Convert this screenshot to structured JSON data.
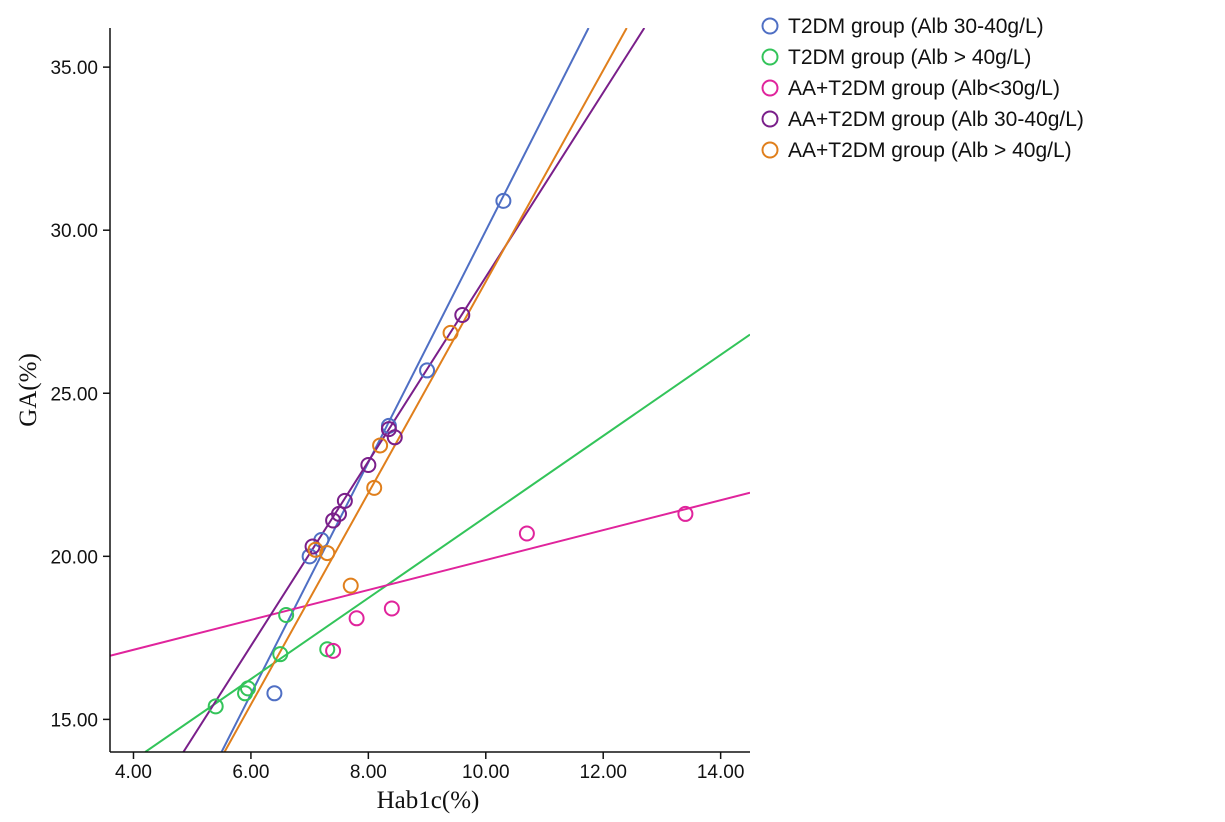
{
  "chart_data": {
    "type": "scatter",
    "title": "",
    "xlabel": "Hab1c(%)",
    "ylabel": "GA(%)",
    "xlim": [
      3.6,
      14.5
    ],
    "ylim": [
      14.0,
      36.2
    ],
    "xticks": [
      4,
      6,
      8,
      10,
      12,
      14
    ],
    "yticks": [
      15,
      20,
      25,
      30,
      35
    ],
    "xtick_labels": [
      "4.00",
      "6.00",
      "8.00",
      "10.00",
      "12.00",
      "14.00"
    ],
    "ytick_labels": [
      "15.00",
      "20.00",
      "25.00",
      "30.00",
      "35.00"
    ],
    "grid": false,
    "legend_position": "top-right outside",
    "series": [
      {
        "name": "T2DM group (Alb 30-40g/L)",
        "color": "#4f6fc4",
        "points": [
          [
            6.4,
            15.8
          ],
          [
            7.0,
            20.0
          ],
          [
            7.2,
            20.5
          ],
          [
            8.35,
            24.0
          ],
          [
            9.0,
            25.7
          ],
          [
            10.3,
            30.9
          ]
        ],
        "fit": [
          [
            5.5,
            14.0
          ],
          [
            11.75,
            36.2
          ]
        ]
      },
      {
        "name": "T2DM group (Alb > 40g/L)",
        "color": "#33c45a",
        "points": [
          [
            5.4,
            15.4
          ],
          [
            5.9,
            15.8
          ],
          [
            5.95,
            15.95
          ],
          [
            6.5,
            17.0
          ],
          [
            6.6,
            18.2
          ],
          [
            7.3,
            17.15
          ]
        ],
        "fit": [
          [
            4.2,
            14.0
          ],
          [
            14.5,
            26.8
          ]
        ]
      },
      {
        "name": "AA+T2DM group (Alb<30g/L)",
        "color": "#e0249c",
        "points": [
          [
            7.4,
            17.1
          ],
          [
            7.8,
            18.1
          ],
          [
            8.4,
            18.4
          ],
          [
            10.7,
            20.7
          ],
          [
            13.4,
            21.3
          ]
        ],
        "fit": [
          [
            3.6,
            16.95
          ],
          [
            14.5,
            21.95
          ]
        ]
      },
      {
        "name": "AA+T2DM group (Alb 30-40g/L)",
        "color": "#7a1f8a",
        "points": [
          [
            7.05,
            20.3
          ],
          [
            7.4,
            21.1
          ],
          [
            7.5,
            21.3
          ],
          [
            7.6,
            21.7
          ],
          [
            8.0,
            22.8
          ],
          [
            8.35,
            23.9
          ],
          [
            8.45,
            23.65
          ],
          [
            9.6,
            27.4
          ]
        ],
        "fit": [
          [
            4.85,
            14.0
          ],
          [
            12.7,
            36.2
          ]
        ]
      },
      {
        "name": "AA+T2DM group (Alb > 40g/L)",
        "color": "#e07f1c",
        "points": [
          [
            7.1,
            20.2
          ],
          [
            7.3,
            20.1
          ],
          [
            7.7,
            19.1
          ],
          [
            8.1,
            22.1
          ],
          [
            8.2,
            23.4
          ],
          [
            9.4,
            26.85
          ]
        ],
        "fit": [
          [
            5.55,
            14.0
          ],
          [
            12.4,
            36.2
          ]
        ]
      }
    ]
  }
}
